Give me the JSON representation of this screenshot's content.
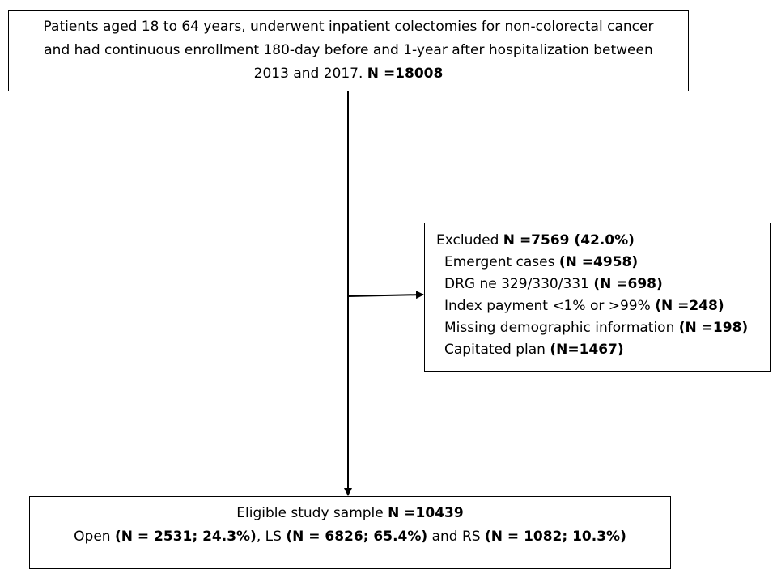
{
  "nodes": [
    {
      "lines": [
        [
          {
            "text": "Patients aged 18 to 64 years, underwent inpatient colectomies for non-colorectal cancer",
            "bold": false
          }
        ],
        [
          {
            "text": "and had continuous enrollment 180-day before and 1-year after hospitalization between",
            "bold": false
          }
        ],
        [
          {
            "text": "2013 and 2017. ",
            "bold": false
          },
          {
            "text": "N =18008",
            "bold": true
          }
        ]
      ]
    },
    {
      "lines": [
        [
          {
            "text": "Excluded ",
            "bold": false
          },
          {
            "text": "N =7569 (42.0%)",
            "bold": true
          }
        ],
        [
          {
            "text": "Emergent cases ",
            "bold": false
          },
          {
            "text": "(N =4958)",
            "bold": true
          }
        ],
        [
          {
            "text": "DRG ne 329/330/331 ",
            "bold": false
          },
          {
            "text": "(N =698)",
            "bold": true
          }
        ],
        [
          {
            "text": "Index payment <1% or >99% ",
            "bold": false
          },
          {
            "text": "(N =248)",
            "bold": true
          }
        ],
        [
          {
            "text": "Missing demographic information ",
            "bold": false
          },
          {
            "text": "(N =198)",
            "bold": true
          }
        ],
        [
          {
            "text": "Capitated plan ",
            "bold": false
          },
          {
            "text": "(N=1467)",
            "bold": true
          }
        ]
      ]
    },
    {
      "lines": [
        [
          {
            "text": "Eligible study sample ",
            "bold": false
          },
          {
            "text": "N =10439",
            "bold": true
          }
        ],
        [
          {
            "text": "Open ",
            "bold": false
          },
          {
            "text": "(N = 2531; 24.3%)",
            "bold": true
          },
          {
            "text": ", LS ",
            "bold": false
          },
          {
            "text": "(N = 6826; 65.4%)",
            "bold": true
          },
          {
            "text": " and RS ",
            "bold": false
          },
          {
            "text": "(N = 1082; 10.3%)",
            "bold": true
          }
        ]
      ]
    }
  ]
}
